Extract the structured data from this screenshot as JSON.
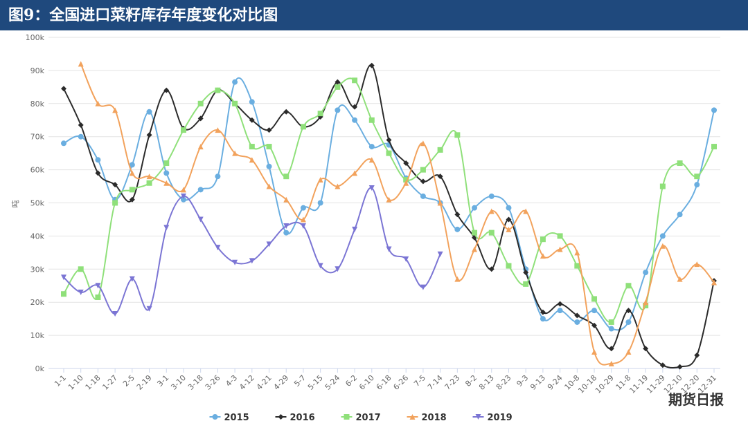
{
  "chart_data": {
    "type": "line",
    "title": "图9：全国进口菜籽库存年度变化对比图",
    "y_label": "吨",
    "watermark": "期货日报",
    "categories": [
      "1-1",
      "1-10",
      "1-18",
      "1-27",
      "2-5",
      "2-19",
      "3-1",
      "3-10",
      "3-18",
      "3-26",
      "4-3",
      "4-12",
      "4-21",
      "4-29",
      "5-7",
      "5-15",
      "5-24",
      "6-2",
      "6-10",
      "6-18",
      "6-26",
      "7-5",
      "7-14",
      "7-23",
      "8-2",
      "8-13",
      "8-23",
      "9-3",
      "9-13",
      "9-24",
      "10-8",
      "10-18",
      "10-29",
      "11-8",
      "11-19",
      "11-29",
      "12-10",
      "12-20",
      "12-31"
    ],
    "ylim": [
      0,
      100000
    ],
    "yticks": [
      {
        "value": 0,
        "label": "0k"
      },
      {
        "value": 10000,
        "label": "10k"
      },
      {
        "value": 20000,
        "label": "20k"
      },
      {
        "value": 30000,
        "label": "30k"
      },
      {
        "value": 40000,
        "label": "40k"
      },
      {
        "value": 50000,
        "label": "50k"
      },
      {
        "value": 60000,
        "label": "60k"
      },
      {
        "value": 70000,
        "label": "70k"
      },
      {
        "value": 80000,
        "label": "80k"
      },
      {
        "value": 90000,
        "label": "90k"
      },
      {
        "value": 100000,
        "label": "100k"
      }
    ],
    "grid": true,
    "legend": "bottom",
    "series": [
      {
        "name": "2015",
        "color": "#6aaee0",
        "marker": "circle",
        "values": [
          68000,
          70000,
          63000,
          51000,
          61500,
          77500,
          59000,
          51000,
          54000,
          58000,
          86500,
          80500,
          61000,
          41000,
          48500,
          50000,
          78000,
          75000,
          67000,
          67500,
          57500,
          52000,
          50000,
          42000,
          48500,
          52000,
          48500,
          30000,
          15000,
          17500,
          14000,
          17500,
          12000,
          14000,
          29000,
          40000,
          46500,
          55500,
          78000
        ]
      },
      {
        "name": "2016",
        "color": "#2b2b2b",
        "marker": "diamond",
        "values": [
          84500,
          73500,
          59000,
          55500,
          51000,
          70500,
          84000,
          72500,
          75500,
          84000,
          80000,
          75000,
          72000,
          77500,
          73000,
          76000,
          86500,
          79000,
          91500,
          69000,
          62000,
          56500,
          58000,
          46500,
          39500,
          30000,
          45000,
          29000,
          17000,
          19500,
          16000,
          13000,
          6000,
          17500,
          6000,
          1000,
          500,
          4000,
          26500
        ]
      },
      {
        "name": "2017",
        "color": "#8fe07a",
        "marker": "square",
        "values": [
          22500,
          30000,
          21500,
          50000,
          54000,
          56000,
          62000,
          72000,
          80000,
          84000,
          80000,
          67000,
          67000,
          58000,
          73000,
          77000,
          85000,
          87000,
          75000,
          65000,
          57000,
          60000,
          66000,
          70500,
          41000,
          41000,
          31000,
          25500,
          39000,
          40000,
          31000,
          21000,
          14000,
          25000,
          19000,
          55000,
          62000,
          58000,
          67000
        ]
      },
      {
        "name": "2018",
        "color": "#f2a25c",
        "marker": "triangle",
        "values": [
          null,
          92000,
          80000,
          78000,
          59000,
          58000,
          56000,
          54000,
          67000,
          72000,
          65000,
          63000,
          55000,
          51000,
          45000,
          57000,
          55000,
          59000,
          63000,
          51000,
          56000,
          68000,
          50000,
          27000,
          36000,
          47500,
          42000,
          47500,
          34000,
          36000,
          35000,
          5000,
          1500,
          5000,
          20000,
          37000,
          27000,
          31500,
          26000
        ]
      },
      {
        "name": "2019",
        "color": "#7b75d4",
        "marker": "triangle-down",
        "values": [
          27500,
          23000,
          25000,
          16500,
          27000,
          18000,
          42500,
          52000,
          45000,
          36500,
          32000,
          32500,
          37500,
          43000,
          43000,
          31000,
          30000,
          42000,
          54500,
          36000,
          33000,
          24500,
          34500,
          null,
          null,
          null,
          null,
          null,
          null,
          null,
          null,
          null,
          null,
          null,
          null,
          null,
          null,
          null,
          null
        ]
      }
    ]
  }
}
